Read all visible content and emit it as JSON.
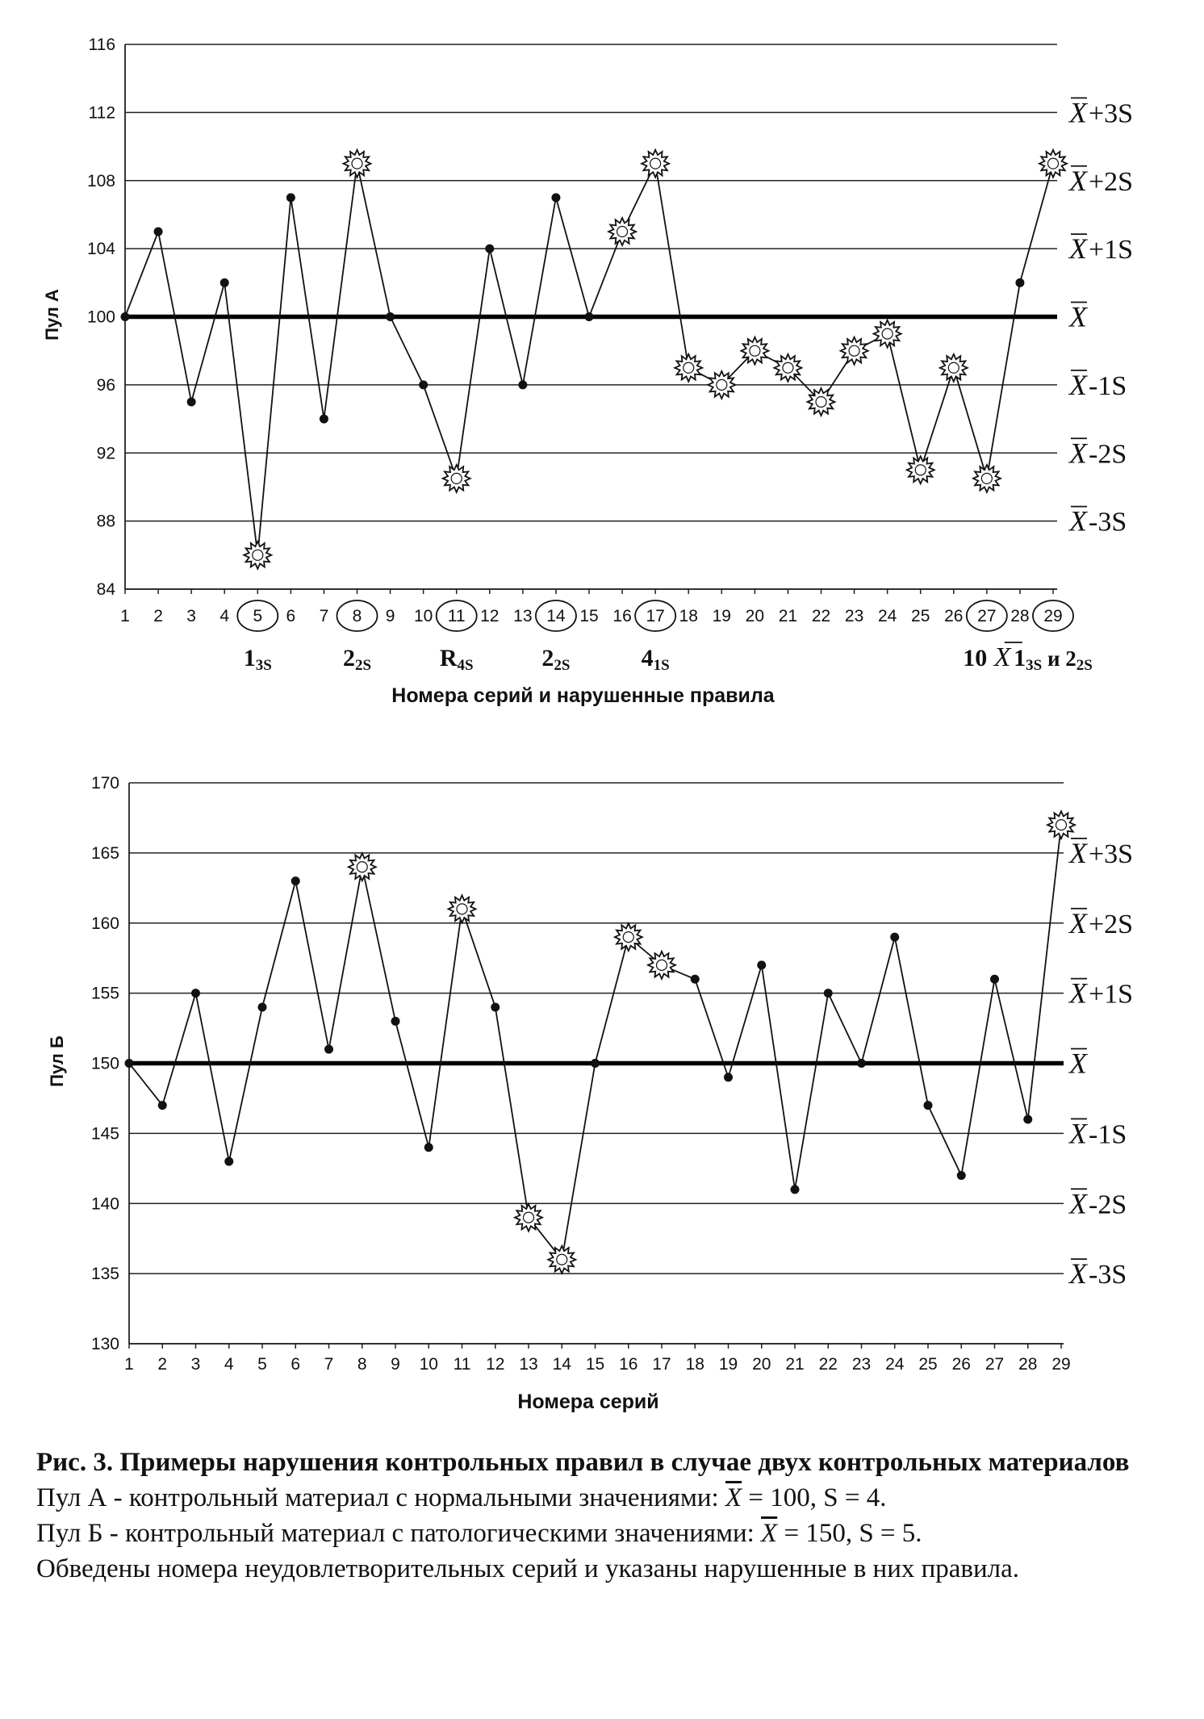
{
  "chart_data": [
    {
      "type": "line",
      "id": "pool-a",
      "ylabel": "Пул А",
      "xlabel": "Номера серий и нарушенные правила",
      "ylim": [
        84,
        116
      ],
      "yticks": [
        84,
        88,
        92,
        96,
        100,
        104,
        108,
        112,
        116
      ],
      "x": [
        1,
        2,
        3,
        4,
        5,
        6,
        7,
        8,
        9,
        10,
        11,
        12,
        13,
        14,
        15,
        16,
        17,
        18,
        19,
        20,
        21,
        22,
        23,
        24,
        25,
        26,
        27,
        28,
        29
      ],
      "values": [
        100,
        105,
        95,
        102,
        86,
        107,
        94,
        109,
        100,
        96,
        90.5,
        104,
        96,
        107,
        100,
        105,
        109,
        97,
        96,
        98,
        97,
        95,
        98,
        99,
        91,
        97,
        90.5,
        102,
        109
      ],
      "flagged": [
        5,
        8,
        11,
        16,
        17,
        18,
        19,
        20,
        21,
        22,
        23,
        24,
        25,
        26,
        27,
        29
      ],
      "mean": 100,
      "sd": 4,
      "circled": [
        5,
        8,
        11,
        14,
        17,
        27,
        29
      ],
      "sd_labels": [
        "+3S",
        "+2S",
        "+1S",
        "",
        "-1S",
        "-2S",
        "-3S"
      ],
      "rules": [
        {
          "x": 5,
          "main": "1",
          "sub": "3S",
          "extra": "",
          "xbar": false
        },
        {
          "x": 8,
          "main": "2",
          "sub": "2S",
          "extra": "",
          "xbar": false
        },
        {
          "x": 11,
          "main": "R",
          "sub": "4S",
          "extra": "",
          "xbar": false
        },
        {
          "x": 14,
          "main": "2",
          "sub": "2S",
          "extra": "",
          "xbar": false
        },
        {
          "x": 17,
          "main": "4",
          "sub": "1S",
          "extra": "",
          "xbar": false
        },
        {
          "x": 27,
          "main": "10",
          "sub": "",
          "extra": "",
          "xbar": true
        },
        {
          "x": 29,
          "main": "1",
          "sub": "3S",
          "extra": " и 2",
          "sub2": "2S",
          "xbar": false
        }
      ]
    },
    {
      "type": "line",
      "id": "pool-b",
      "ylabel": "Пул Б",
      "xlabel": "Номера серий",
      "ylim": [
        130,
        170
      ],
      "yticks": [
        130,
        135,
        140,
        145,
        150,
        155,
        160,
        165,
        170
      ],
      "x": [
        1,
        2,
        3,
        4,
        5,
        6,
        7,
        8,
        9,
        10,
        11,
        12,
        13,
        14,
        15,
        16,
        17,
        18,
        19,
        20,
        21,
        22,
        23,
        24,
        25,
        26,
        27,
        28,
        29
      ],
      "values": [
        150,
        147,
        155,
        143,
        154,
        163,
        151,
        164,
        153,
        144,
        161,
        154,
        139,
        136,
        150,
        159,
        157,
        156,
        149,
        157,
        141,
        155,
        150,
        159,
        147,
        142,
        156,
        146,
        167
      ],
      "flagged": [
        8,
        11,
        13,
        14,
        16,
        17,
        29
      ],
      "mean": 150,
      "sd": 5,
      "circled": [],
      "sd_labels": [
        "+3S",
        "+2S",
        "+1S",
        "",
        "-1S",
        "-2S",
        "-3S"
      ],
      "rules": []
    }
  ],
  "caption": {
    "title": "Рис. 3. Примеры нарушения контрольных правил в случае двух контрольных материалов",
    "line1_pre": "Пул А - контрольный материал с нормальными значениями: ",
    "line1_post": " = 100, S = 4.",
    "line2_pre": "Пул Б - контрольный материал с патологическими значениями: ",
    "line2_post": " = 150, S = 5.",
    "line3": "Обведены номера неудовлетворительных серий и указаны нарушенные в них правила.",
    "xbar_symbol": "X"
  }
}
